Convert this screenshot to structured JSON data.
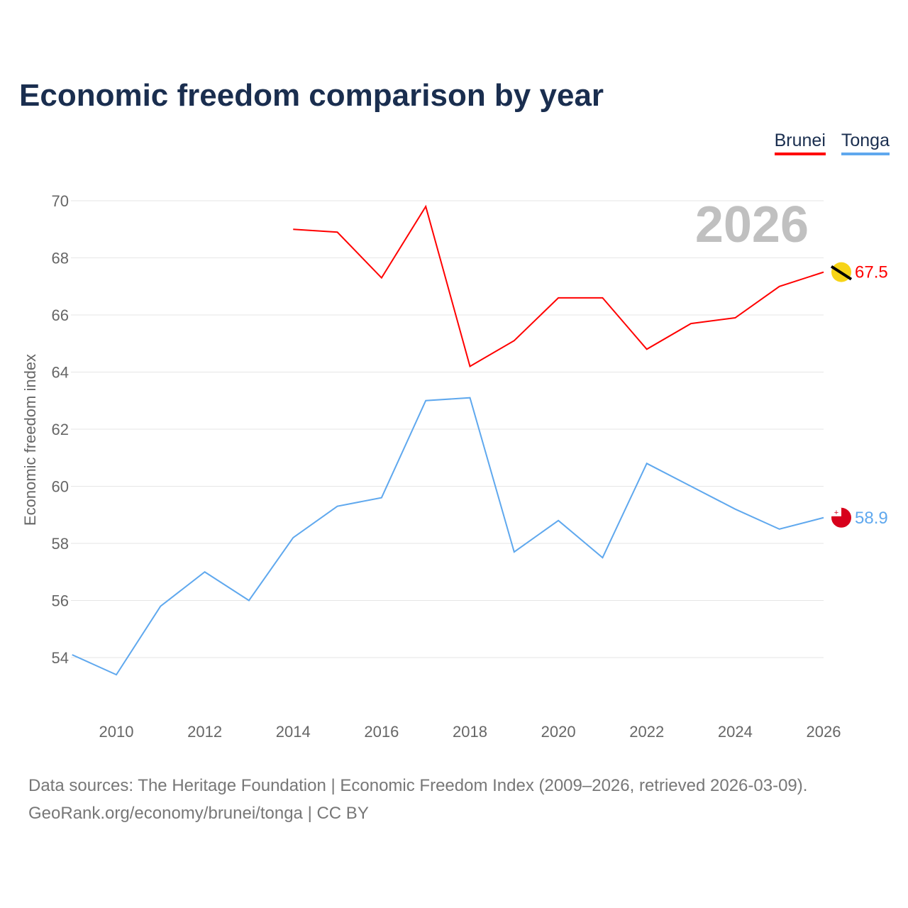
{
  "title": "Economic freedom comparison by year",
  "legend": [
    {
      "name": "Brunei",
      "color": "#ff0000"
    },
    {
      "name": "Tonga",
      "color": "#5fa8ee"
    }
  ],
  "source_line1": "Data sources: The Heritage Foundation | Economic Freedom Index (2009–2026, retrieved 2026-03-09).",
  "source_line2": "GeoRank.org/economy/brunei/tonga | CC BY",
  "chart_data": {
    "type": "line",
    "title": "Economic freedom comparison by year",
    "ylabel": "Economic freedom index",
    "xlabel": "",
    "year_watermark": "2026",
    "xlim": [
      2009,
      2026
    ],
    "ylim": [
      52,
      71
    ],
    "xticks": [
      2010,
      2012,
      2014,
      2016,
      2018,
      2020,
      2022,
      2024,
      2026
    ],
    "yticks": [
      54,
      56,
      58,
      60,
      62,
      64,
      66,
      68,
      70
    ],
    "grid": true,
    "legend_position": "top-right",
    "series": [
      {
        "name": "Brunei",
        "color": "#ff0000",
        "end_label": "67.5",
        "x": [
          2014,
          2015,
          2016,
          2017,
          2018,
          2019,
          2020,
          2021,
          2022,
          2023,
          2024,
          2025,
          2026
        ],
        "y": [
          69.0,
          68.9,
          67.3,
          69.8,
          64.2,
          65.1,
          66.6,
          66.6,
          64.8,
          65.7,
          65.9,
          67.0,
          67.5
        ]
      },
      {
        "name": "Tonga",
        "color": "#5fa8ee",
        "end_label": "58.9",
        "x": [
          2009,
          2010,
          2011,
          2012,
          2013,
          2014,
          2015,
          2016,
          2017,
          2018,
          2019,
          2020,
          2021,
          2022,
          2023,
          2024,
          2025,
          2026
        ],
        "y": [
          54.1,
          53.4,
          55.8,
          57.0,
          56.0,
          58.2,
          59.3,
          59.6,
          63.0,
          63.1,
          57.7,
          58.8,
          57.5,
          60.8,
          60.0,
          59.2,
          58.5,
          58.9
        ]
      }
    ]
  }
}
